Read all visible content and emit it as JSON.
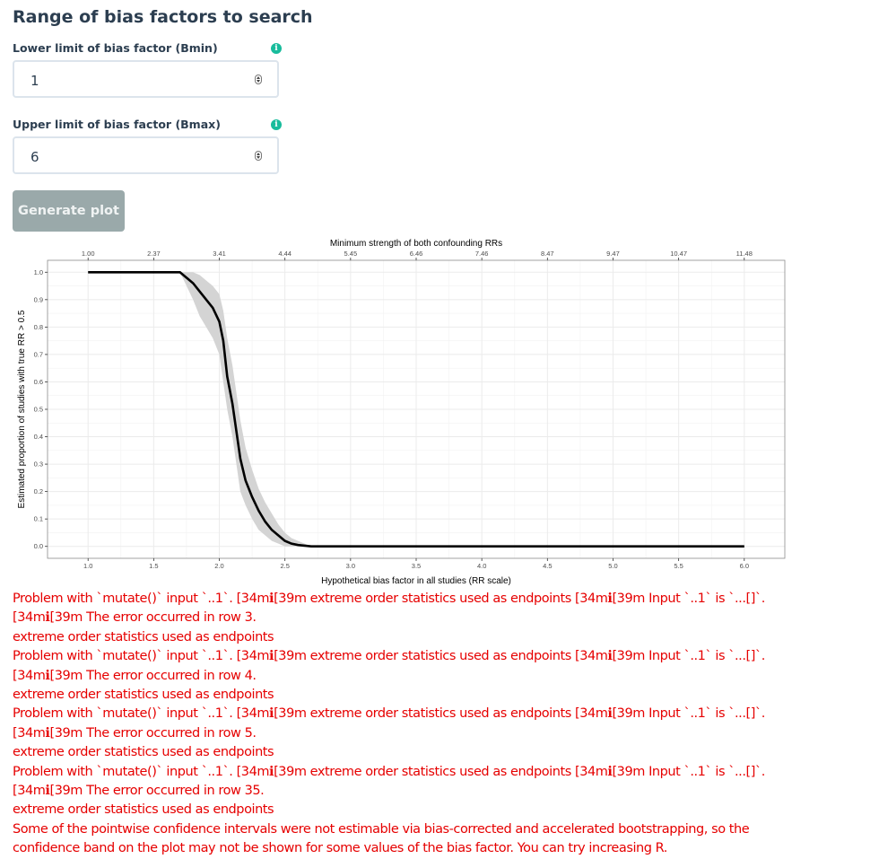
{
  "section_title": "Range of bias factors to search",
  "bmin": {
    "label": "Lower limit of bias factor (Bmin)",
    "value": "1"
  },
  "bmax": {
    "label": "Upper limit of bias factor (Bmax)",
    "value": "6"
  },
  "generate_button": "Generate plot",
  "icons": {
    "info": "info-circle-icon",
    "spinner": "number-spinner-icon"
  },
  "colors": {
    "accent": "#18bc9c",
    "button": "#95a5a6",
    "error": "#e60000",
    "text": "#2c3e50"
  },
  "chart_data": {
    "type": "line",
    "title": "Minimum strength of both confounding RRs",
    "xlabel": "Hypothetical bias factor in all studies (RR scale)",
    "ylabel": "Estimated proportion of studies with true RR > 0.5",
    "xlim": [
      1.0,
      6.0
    ],
    "ylim": [
      0.0,
      1.0
    ],
    "x_ticks": [
      "1.0",
      "1.5",
      "2.0",
      "2.5",
      "3.0",
      "3.5",
      "4.0",
      "4.5",
      "5.0",
      "5.5",
      "6.0"
    ],
    "y_ticks": [
      "0.0",
      "0.1",
      "0.2",
      "0.3",
      "0.4",
      "0.5",
      "0.6",
      "0.7",
      "0.8",
      "0.9",
      "1.0"
    ],
    "top_ticks": [
      "1.00",
      "2.37",
      "3.41",
      "4.44",
      "5.45",
      "6.46",
      "7.46",
      "8.47",
      "9.47",
      "10.47",
      "11.48"
    ],
    "grid": true,
    "series": [
      {
        "x": [
          1.0,
          1.7,
          1.75,
          1.8,
          1.85,
          1.9,
          1.95,
          2.0,
          2.03,
          2.06,
          2.1,
          2.13,
          2.16,
          2.2,
          2.25,
          2.3,
          2.35,
          2.4,
          2.45,
          2.5,
          2.55,
          2.6,
          2.7,
          3.0,
          6.0
        ],
        "y": [
          1.0,
          1.0,
          0.98,
          0.96,
          0.93,
          0.9,
          0.87,
          0.82,
          0.75,
          0.62,
          0.52,
          0.42,
          0.32,
          0.24,
          0.18,
          0.13,
          0.09,
          0.06,
          0.04,
          0.02,
          0.01,
          0.005,
          0.0,
          0.0,
          0.0
        ],
        "lower": [
          1.0,
          1.0,
          0.95,
          0.9,
          0.84,
          0.8,
          0.76,
          0.7,
          0.6,
          0.5,
          0.4,
          0.3,
          0.2,
          0.15,
          0.1,
          0.06,
          0.04,
          0.02,
          0.01,
          0.0,
          0.0,
          0.0,
          0.0,
          0.0,
          0.0
        ],
        "upper": [
          1.0,
          1.0,
          1.0,
          1.0,
          0.99,
          0.97,
          0.95,
          0.92,
          0.86,
          0.76,
          0.66,
          0.56,
          0.46,
          0.36,
          0.28,
          0.21,
          0.16,
          0.12,
          0.08,
          0.05,
          0.03,
          0.02,
          0.0,
          0.0,
          0.0
        ]
      }
    ]
  },
  "messages": [
    "Problem with `mutate()` input `..1`. [34mℹ[39m extreme order statistics used as endpoints [34mℹ[39m Input `..1` is `...[]`. [34mℹ[39m The error occurred in row 3.",
    "extreme order statistics used as endpoints",
    "Problem with `mutate()` input `..1`. [34mℹ[39m extreme order statistics used as endpoints [34mℹ[39m Input `..1` is `...[]`. [34mℹ[39m The error occurred in row 4.",
    "extreme order statistics used as endpoints",
    "Problem with `mutate()` input `..1`. [34mℹ[39m extreme order statistics used as endpoints [34mℹ[39m Input `..1` is `...[]`. [34mℹ[39m The error occurred in row 5.",
    "extreme order statistics used as endpoints",
    "Problem with `mutate()` input `..1`. [34mℹ[39m extreme order statistics used as endpoints [34mℹ[39m Input `..1` is `...[]`. [34mℹ[39m The error occurred in row 35.",
    "extreme order statistics used as endpoints",
    "Some of the pointwise confidence intervals were not estimable via bias-corrected and accelerated bootstrapping, so the confidence band on the plot may not be shown for some values of the bias factor. You can try increasing R."
  ]
}
